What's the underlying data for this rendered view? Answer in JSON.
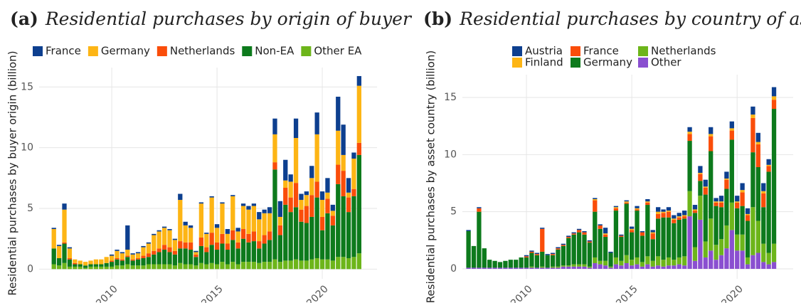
{
  "chart_data": [
    {
      "type": "bar",
      "stacked": true,
      "panel": "(a)",
      "title": "Residential purchases by origin of buyer",
      "y_label": "Residential purchases by buyer origin (billion)",
      "x": [
        2007.25,
        2007.5,
        2007.75,
        2008,
        2008.25,
        2008.5,
        2008.75,
        2009,
        2009.25,
        2009.5,
        2009.75,
        2010,
        2010.25,
        2010.5,
        2010.75,
        2011,
        2011.25,
        2011.5,
        2011.75,
        2012,
        2012.25,
        2012.5,
        2012.75,
        2013,
        2013.25,
        2013.5,
        2013.75,
        2014,
        2014.25,
        2014.5,
        2014.75,
        2015,
        2015.25,
        2015.5,
        2015.75,
        2016,
        2016.25,
        2016.5,
        2016.75,
        2017,
        2017.25,
        2017.5,
        2017.75,
        2018,
        2018.25,
        2018.5,
        2018.75,
        2019,
        2019.25,
        2019.5,
        2019.75,
        2020,
        2020.25,
        2020.5,
        2020.75,
        2021,
        2021.25,
        2021.5,
        2021.75
      ],
      "xlim": [
        2006.55,
        2022.6
      ],
      "xticks": [
        2010,
        2015,
        2020
      ],
      "ylim": [
        -0.8,
        16.6
      ],
      "yticks": [
        0,
        5,
        10,
        15
      ],
      "grid": true,
      "series": [
        {
          "name": "France",
          "color": "#0d3f8f",
          "values": [
            0.1,
            0.1,
            0.5,
            0.1,
            0.0,
            0.0,
            0.0,
            0.0,
            0.0,
            0.0,
            0.0,
            0.1,
            0.1,
            0.1,
            2.0,
            0.1,
            0.1,
            0.1,
            0.1,
            0.1,
            0.1,
            0.1,
            0.1,
            0.1,
            0.5,
            0.3,
            0.2,
            0.1,
            0.1,
            0.1,
            0.1,
            0.3,
            0.1,
            0.4,
            0.1,
            0.3,
            0.2,
            0.3,
            0.2,
            0.6,
            0.3,
            0.5,
            1.3,
            1.3,
            1.7,
            0.6,
            1.6,
            0.5,
            0.3,
            1.0,
            1.8,
            0.7,
            1.2,
            0.5,
            2.8,
            2.5,
            1.2,
            0.5,
            0.8
          ]
        },
        {
          "name": "Germany",
          "color": "#fdb515",
          "values": [
            1.6,
            1.0,
            2.7,
            0.8,
            0.3,
            0.3,
            0.3,
            0.3,
            0.4,
            0.4,
            0.5,
            0.4,
            0.6,
            0.5,
            0.5,
            0.4,
            0.4,
            0.7,
            0.8,
            1.3,
            1.4,
            1.4,
            1.4,
            0.9,
            3.4,
            1.4,
            1.2,
            0.2,
            2.8,
            1.1,
            2.9,
            1.2,
            2.5,
            0.8,
            2.8,
            0.9,
            1.9,
            2.0,
            2.1,
            1.8,
            1.8,
            1.5,
            2.3,
            0.7,
            0.6,
            1.3,
            3.7,
            0.8,
            0.9,
            1.4,
            3.9,
            1.4,
            0.5,
            0.4,
            2.8,
            1.3,
            0.4,
            2.5,
            4.7
          ]
        },
        {
          "name": "Netherlands",
          "color": "#fa4d0a",
          "values": [
            0.0,
            0.0,
            0.1,
            0.1,
            0.1,
            0.0,
            0.0,
            0.0,
            0.0,
            0.0,
            0.0,
            0.1,
            0.1,
            0.1,
            0.1,
            0.1,
            0.1,
            0.2,
            0.3,
            0.3,
            0.3,
            0.4,
            0.4,
            0.3,
            0.6,
            0.5,
            0.6,
            0.2,
            0.7,
            0.4,
            1.0,
            0.6,
            0.8,
            0.5,
            0.8,
            0.5,
            0.8,
            0.7,
            0.8,
            0.6,
            0.7,
            0.7,
            0.6,
            0.8,
            1.4,
            1.2,
            2.0,
            1.0,
            1.4,
            1.8,
            1.3,
            1.1,
            1.2,
            0.8,
            1.6,
            2.1,
            1.2,
            0.6,
            1.0
          ]
        },
        {
          "name": "Non-EA",
          "color": "#0d7a1c",
          "values": [
            1.3,
            0.6,
            1.6,
            0.6,
            0.2,
            0.2,
            0.2,
            0.2,
            0.2,
            0.2,
            0.3,
            0.4,
            0.5,
            0.4,
            0.6,
            0.4,
            0.5,
            0.6,
            0.6,
            0.8,
            1.0,
            1.2,
            1.0,
            0.9,
            1.2,
            1.3,
            1.2,
            0.7,
            1.4,
            1.0,
            1.5,
            1.2,
            1.5,
            1.2,
            1.8,
            1.3,
            1.9,
            1.6,
            1.7,
            1.2,
            1.5,
            1.8,
            7.4,
            2.2,
            4.6,
            4.0,
            4.3,
            3.2,
            3.1,
            3.5,
            5.0,
            2.4,
            3.8,
            2.9,
            6.0,
            5.0,
            3.8,
            5.0,
            8.1
          ]
        },
        {
          "name": "Other EA",
          "color": "#6db51a",
          "values": [
            0.4,
            0.3,
            0.5,
            0.2,
            0.2,
            0.2,
            0.1,
            0.2,
            0.2,
            0.2,
            0.2,
            0.2,
            0.3,
            0.3,
            0.4,
            0.3,
            0.3,
            0.3,
            0.4,
            0.4,
            0.4,
            0.4,
            0.4,
            0.3,
            0.5,
            0.4,
            0.4,
            0.3,
            0.5,
            0.4,
            0.5,
            0.4,
            0.6,
            0.4,
            0.6,
            0.4,
            0.6,
            0.6,
            0.6,
            0.5,
            0.6,
            0.6,
            0.8,
            0.6,
            0.7,
            0.7,
            0.8,
            0.7,
            0.7,
            0.8,
            0.9,
            0.8,
            0.8,
            0.7,
            1.0,
            1.0,
            0.9,
            1.0,
            1.3
          ]
        }
      ]
    },
    {
      "type": "bar",
      "stacked": true,
      "panel": "(b)",
      "title": "Residential purchases by country of asset",
      "y_label": "Residential purchases by asset country (billion)",
      "x": [
        2007.25,
        2007.5,
        2007.75,
        2008,
        2008.25,
        2008.5,
        2008.75,
        2009,
        2009.25,
        2009.5,
        2009.75,
        2010,
        2010.25,
        2010.5,
        2010.75,
        2011,
        2011.25,
        2011.5,
        2011.75,
        2012,
        2012.25,
        2012.5,
        2012.75,
        2013,
        2013.25,
        2013.5,
        2013.75,
        2014,
        2014.25,
        2014.5,
        2014.75,
        2015,
        2015.25,
        2015.5,
        2015.75,
        2016,
        2016.25,
        2016.5,
        2016.75,
        2017,
        2017.25,
        2017.5,
        2017.75,
        2018,
        2018.25,
        2018.5,
        2018.75,
        2019,
        2019.25,
        2019.5,
        2019.75,
        2020,
        2020.25,
        2020.5,
        2020.75,
        2021,
        2021.25,
        2021.5,
        2021.75
      ],
      "xlim": [
        2006.96,
        2022.66
      ],
      "xticks": [
        2010,
        2015,
        2020
      ],
      "ylim": [
        -0.87,
        16.99
      ],
      "yticks": [
        0,
        5,
        10,
        15
      ],
      "grid": true,
      "series": [
        {
          "name": "Austria",
          "color": "#0d3f8f",
          "values": [
            0.1,
            0.0,
            0.1,
            0.0,
            0.0,
            0.0,
            0.0,
            0.0,
            0.0,
            0.0,
            0.0,
            0.1,
            0.1,
            0.1,
            0.1,
            0.1,
            0.1,
            0.1,
            0.1,
            0.1,
            0.1,
            0.1,
            0.1,
            0.1,
            0.1,
            0.1,
            0.5,
            0.1,
            0.1,
            0.1,
            0.1,
            0.2,
            0.2,
            0.1,
            0.2,
            0.2,
            0.4,
            0.2,
            0.3,
            0.3,
            0.3,
            0.4,
            0.4,
            0.4,
            0.6,
            0.6,
            0.6,
            0.3,
            0.5,
            0.6,
            0.6,
            0.5,
            0.6,
            0.5,
            0.7,
            0.8,
            0.7,
            0.5,
            0.8
          ]
        },
        {
          "name": "Finland",
          "color": "#fdb515",
          "values": [
            0.0,
            0.0,
            0.0,
            0.0,
            0.0,
            0.0,
            0.0,
            0.0,
            0.0,
            0.0,
            0.0,
            0.0,
            0.0,
            0.0,
            0.0,
            0.0,
            0.0,
            0.0,
            0.0,
            0.0,
            0.0,
            0.0,
            0.0,
            0.0,
            0.1,
            0.0,
            0.1,
            0.0,
            0.1,
            0.0,
            0.1,
            0.1,
            0.1,
            0.0,
            0.1,
            0.1,
            0.2,
            0.1,
            0.1,
            0.1,
            0.1,
            0.1,
            0.2,
            0.1,
            0.1,
            0.1,
            0.2,
            0.1,
            0.1,
            0.1,
            0.2,
            0.1,
            0.2,
            0.1,
            0.3,
            0.2,
            0.2,
            0.1,
            0.3
          ]
        },
        {
          "name": "France",
          "color": "#fa4d0a",
          "values": [
            0.0,
            0.0,
            0.3,
            0.0,
            0.0,
            0.0,
            0.0,
            0.0,
            0.0,
            0.0,
            0.0,
            0.1,
            0.1,
            0.1,
            2.0,
            0.0,
            0.1,
            0.1,
            0.1,
            0.1,
            0.1,
            0.2,
            0.2,
            0.1,
            1.0,
            0.3,
            0.2,
            0.0,
            0.2,
            0.1,
            0.1,
            0.2,
            0.1,
            0.3,
            0.2,
            0.5,
            0.4,
            0.4,
            0.5,
            0.3,
            0.2,
            0.2,
            0.6,
            0.2,
            0.6,
            0.6,
            1.3,
            0.3,
            0.4,
            0.8,
            0.8,
            0.5,
            1.2,
            0.5,
            3.0,
            2.0,
            1.2,
            0.5,
            0.8
          ]
        },
        {
          "name": "Germany",
          "color": "#0d7a1c",
          "values": [
            3.2,
            1.9,
            4.9,
            1.7,
            0.7,
            0.6,
            0.5,
            0.6,
            0.7,
            0.7,
            0.9,
            0.9,
            1.2,
            1.1,
            1.3,
            1.1,
            1.0,
            1.5,
            1.7,
            2.4,
            2.6,
            2.8,
            2.6,
            2.1,
            4.0,
            2.8,
            2.1,
            1.2,
            4.1,
            2.1,
            4.5,
            2.4,
            4.1,
            2.3,
            4.5,
            1.9,
            3.3,
            3.7,
            3.5,
            3.2,
            3.3,
            3.3,
            4.4,
            3.0,
            1.3,
            4.1,
            5.9,
            3.4,
            2.8,
            3.2,
            5.5,
            2.3,
            2.5,
            3.2,
            4.8,
            4.7,
            3.2,
            7.1,
            11.8
          ]
        },
        {
          "name": "Netherlands",
          "color": "#6db51a",
          "values": [
            0.0,
            0.0,
            0.0,
            0.0,
            0.0,
            0.0,
            0.0,
            0.0,
            0.0,
            0.0,
            0.0,
            0.0,
            0.1,
            0.0,
            0.1,
            0.0,
            0.1,
            0.1,
            0.1,
            0.1,
            0.2,
            0.2,
            0.2,
            0.1,
            0.5,
            0.3,
            0.4,
            0.1,
            0.6,
            0.4,
            0.7,
            0.5,
            0.6,
            0.4,
            0.7,
            0.5,
            0.8,
            0.6,
            0.7,
            0.5,
            0.6,
            0.8,
            2.2,
            1.2,
            2.1,
            1.4,
            2.8,
            1.3,
            1.4,
            2.0,
            2.4,
            1.4,
            1.4,
            0.6,
            4.2,
            2.8,
            1.6,
            1.0,
            1.6
          ]
        },
        {
          "name": "Other",
          "color": "#8a4fd0",
          "values": [
            0.1,
            0.1,
            0.1,
            0.1,
            0.1,
            0.1,
            0.1,
            0.1,
            0.1,
            0.1,
            0.1,
            0.1,
            0.1,
            0.1,
            0.1,
            0.1,
            0.1,
            0.1,
            0.2,
            0.2,
            0.2,
            0.2,
            0.2,
            0.1,
            0.5,
            0.4,
            0.3,
            0.1,
            0.4,
            0.3,
            0.5,
            0.3,
            0.4,
            0.2,
            0.4,
            0.2,
            0.3,
            0.2,
            0.3,
            0.3,
            0.4,
            0.3,
            4.6,
            0.7,
            4.3,
            1.0,
            1.6,
            0.8,
            1.2,
            1.8,
            3.4,
            1.6,
            1.6,
            0.4,
            1.2,
            1.4,
            0.6,
            0.4,
            0.6
          ]
        }
      ]
    }
  ]
}
